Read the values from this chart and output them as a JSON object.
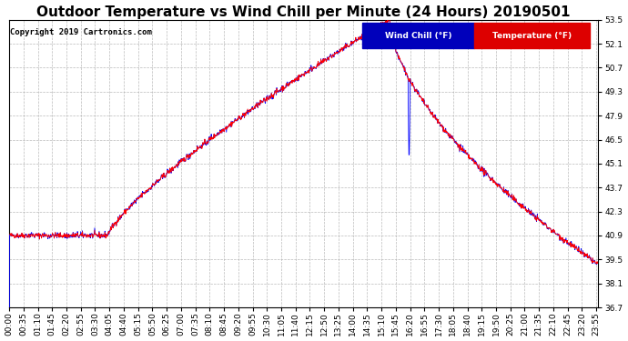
{
  "title": "Outdoor Temperature vs Wind Chill per Minute (24 Hours) 20190501",
  "copyright": "Copyright 2019 Cartronics.com",
  "legend_wind_chill": "Wind Chill (°F)",
  "legend_temperature": "Temperature (°F)",
  "wind_chill_color": "#0000ff",
  "temperature_color": "#ff0000",
  "legend_wc_bg": "#0000bb",
  "legend_temp_bg": "#dd0000",
  "ylim_min": 36.7,
  "ylim_max": 53.5,
  "yticks": [
    36.7,
    38.1,
    39.5,
    40.9,
    42.3,
    43.7,
    45.1,
    46.5,
    47.9,
    49.3,
    50.7,
    52.1,
    53.5
  ],
  "background_color": "#ffffff",
  "grid_color": "#aaaaaa",
  "title_fontsize": 11,
  "tick_fontsize": 6.5,
  "num_minutes": 1440
}
